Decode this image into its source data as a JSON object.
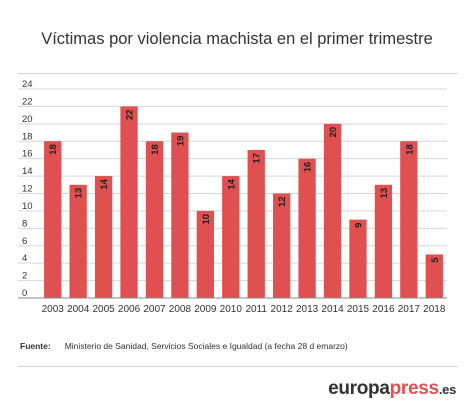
{
  "brand": {
    "logo_part1": "europa",
    "logo_part2": "press",
    "logo_tld": ".es",
    "accent_color": "#e05050"
  },
  "source": {
    "label": "Fuente:",
    "text": "Ministerio de Sanidad, Servicios Sociales e Igualdad (a fecha 28 d emarzo)"
  },
  "chart_data": {
    "type": "bar",
    "title": "Víctimas por violencia machista en el primer trimestre",
    "xlabel": "",
    "ylabel": "",
    "categories": [
      "2003",
      "2004",
      "2005",
      "2006",
      "2007",
      "2008",
      "2009",
      "2010",
      "2011",
      "2012",
      "2013",
      "2014",
      "2015",
      "2016",
      "2017",
      "2018"
    ],
    "values": [
      18,
      13,
      14,
      22,
      18,
      19,
      10,
      14,
      17,
      12,
      16,
      20,
      9,
      13,
      18,
      5
    ],
    "ylim": [
      0,
      24
    ],
    "yticks": [
      0,
      2,
      4,
      6,
      8,
      10,
      12,
      14,
      16,
      18,
      20,
      22,
      24
    ],
    "grid": true,
    "bar_color": "#e05050",
    "data_labels": true
  }
}
